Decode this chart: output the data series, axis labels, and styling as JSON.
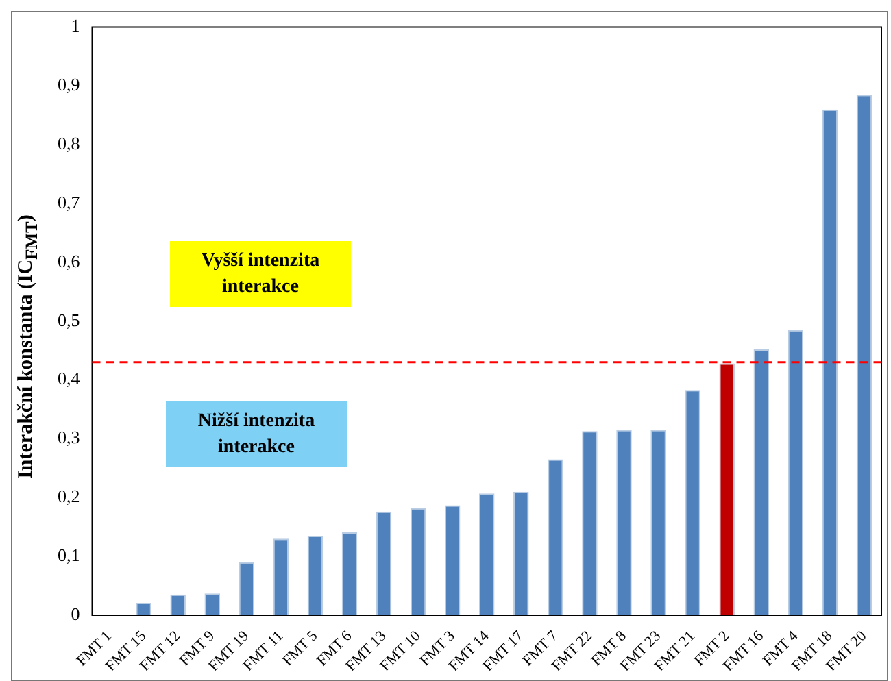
{
  "chart_data": {
    "type": "bar",
    "ylabel": "Interakční konstanta (IC$_{FMT}$)",
    "categories": [
      "FMT 1",
      "FMT 15",
      "FMT 12",
      "FMT 9",
      "FMT 19",
      "FMT 11",
      "FMT 5",
      "FMT 6",
      "FMT 13",
      "FMT 10",
      "FMT 3",
      "FMT 14",
      "FMT 17",
      "FMT 7",
      "FMT 22",
      "FMT 8",
      "FMT 23",
      "FMT 21",
      "FMT 2",
      "FMT 16",
      "FMT 4",
      "FMT 18",
      "FMT 20"
    ],
    "values": [
      0,
      0.021,
      0.035,
      0.037,
      0.09,
      0.13,
      0.135,
      0.141,
      0.176,
      0.182,
      0.187,
      0.207,
      0.21,
      0.265,
      0.313,
      0.315,
      0.315,
      0.383,
      0.428,
      0.452,
      0.485,
      0.86,
      0.885
    ],
    "colors": [
      "#4f81bd",
      "#4f81bd",
      "#4f81bd",
      "#4f81bd",
      "#4f81bd",
      "#4f81bd",
      "#4f81bd",
      "#4f81bd",
      "#4f81bd",
      "#4f81bd",
      "#4f81bd",
      "#4f81bd",
      "#4f81bd",
      "#4f81bd",
      "#4f81bd",
      "#4f81bd",
      "#4f81bd",
      "#4f81bd",
      "#c00000",
      "#4f81bd",
      "#4f81bd",
      "#4f81bd",
      "#4f81bd"
    ],
    "ylim": [
      0,
      1
    ],
    "yticks": [
      0,
      {
        "value": 0.1,
        "label": "0,1"
      },
      {
        "value": 0.2,
        "label": "0,2"
      },
      {
        "value": 0.3,
        "label": "0,3"
      },
      {
        "value": 0.4,
        "label": "0,4"
      },
      {
        "value": 0.5,
        "label": "0,5"
      },
      {
        "value": 0.6,
        "label": "0,6"
      },
      {
        "value": 0.7,
        "label": "0,7"
      },
      {
        "value": 0.8,
        "label": "0,8"
      },
      {
        "value": 0.9,
        "label": "0,9"
      },
      1
    ],
    "ref_lines": [
      {
        "axis": "y",
        "value": 0.43,
        "color": "#ff0000",
        "line_style": "dashed"
      }
    ],
    "annotations": [
      "Vyšší intenzita interakce",
      "Nižší intenzita interakce"
    ],
    "grid": false,
    "legend": false
  }
}
